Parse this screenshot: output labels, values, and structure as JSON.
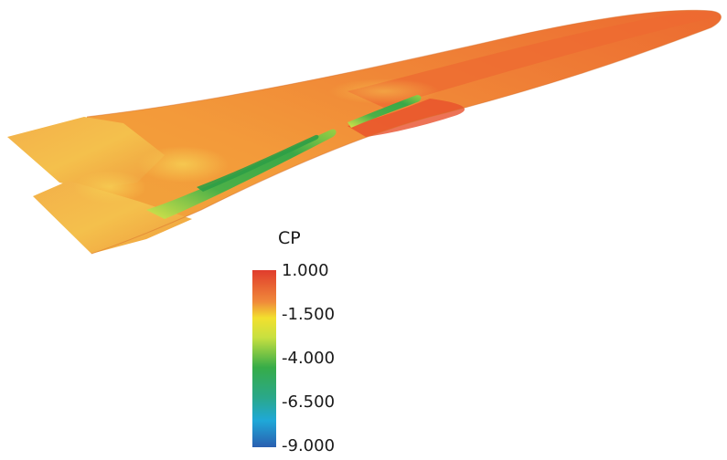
{
  "legend": {
    "title": "CP",
    "ticks": [
      "1.000",
      "-1.500",
      "-4.000",
      "-6.500",
      "-9.000"
    ],
    "range": [
      -9.0,
      1.0
    ],
    "colors": {
      "max": "#e03c2c",
      "upper": "#f2a83a",
      "mid_upper": "#eef02a",
      "mid": "#2fae4a",
      "lower": "#1fa8d8",
      "min": "#2a5fb0"
    }
  },
  "body_colors": {
    "base": "#f08a3a",
    "highlight": "#f4b84a",
    "hot": "#ec5a2e",
    "low": "#3aa848",
    "mid_low": "#c8e040"
  }
}
